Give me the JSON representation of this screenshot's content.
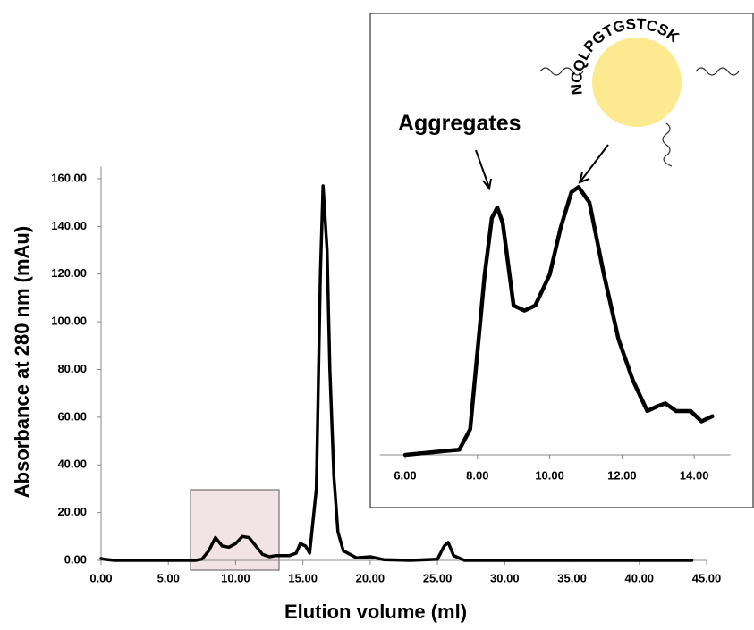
{
  "chart_data": [
    {
      "type": "line",
      "xlabel": "Elution volume (ml)",
      "ylabel": "Absorbance at 280 nm (mAu)",
      "x": [
        0,
        0.3,
        1,
        7,
        7.5,
        8,
        8.5,
        9,
        9.5,
        10,
        10.5,
        11,
        11.5,
        12,
        12.5,
        13,
        14,
        14.5,
        14.8,
        15.2,
        15.5,
        16,
        16.3,
        16.5,
        16.8,
        17,
        17.3,
        17.6,
        18,
        19,
        20,
        21,
        23,
        25,
        25.5,
        25.8,
        26.2,
        27,
        43.9
      ],
      "values": [
        0.8,
        0.4,
        0,
        0,
        0.5,
        4,
        9.5,
        6,
        5.5,
        7,
        10,
        9.5,
        6,
        2.5,
        1.5,
        2,
        2,
        3,
        7,
        6,
        3,
        30,
        120,
        157,
        130,
        80,
        35,
        12,
        4,
        1,
        1.5,
        0.3,
        0,
        0.5,
        6,
        7.5,
        2,
        0,
        0
      ],
      "color": "#000000",
      "xlim": [
        0,
        45
      ],
      "ylim": [
        0,
        165
      ],
      "xticks": [
        {
          "value": 0,
          "label": "0.00"
        },
        {
          "value": 5,
          "label": "5.00"
        },
        {
          "value": 10,
          "label": "10.00"
        },
        {
          "value": 15,
          "label": "15.00"
        },
        {
          "value": 20,
          "label": "20.00"
        },
        {
          "value": 25,
          "label": "25.00"
        },
        {
          "value": 30,
          "label": "30.00"
        },
        {
          "value": 35,
          "label": "35.00"
        },
        {
          "value": 40,
          "label": "40.00"
        },
        {
          "value": 45,
          "label": "45.00"
        }
      ],
      "yticks": [
        {
          "value": 0,
          "label": "0.00"
        },
        {
          "value": 20,
          "label": "20.00"
        },
        {
          "value": 40,
          "label": "40.00"
        },
        {
          "value": 60,
          "label": "60.00"
        },
        {
          "value": 80,
          "label": "80.00"
        },
        {
          "value": 100,
          "label": "100.00"
        },
        {
          "value": 120,
          "label": "120.00"
        },
        {
          "value": 140,
          "label": "140.00"
        },
        {
          "value": 160,
          "label": "160.00"
        }
      ]
    },
    {
      "type": "line",
      "annotation": "Aggregates",
      "icon_label": "NCQLPGTGSTCSK",
      "x": [
        6,
        7.5,
        7.8,
        8,
        8.2,
        8.4,
        8.55,
        8.7,
        9,
        9.3,
        9.6,
        10,
        10.3,
        10.6,
        10.8,
        11.1,
        11.5,
        11.9,
        12.3,
        12.7,
        13,
        13.2,
        13.5,
        13.9,
        14.2,
        14.5
      ],
      "values": [
        0,
        0.2,
        1,
        4,
        7,
        9.2,
        9.6,
        9,
        5.8,
        5.6,
        5.8,
        7,
        8.8,
        10.2,
        10.4,
        9.8,
        7,
        4.5,
        2.9,
        1.7,
        1.9,
        2,
        1.7,
        1.7,
        1.3,
        1.5
      ],
      "color": "#000000",
      "xlim": [
        5.3,
        15
      ],
      "ylim": [
        0,
        11
      ],
      "xticks": [
        {
          "value": 6,
          "label": "6.00"
        },
        {
          "value": 8,
          "label": "8.00"
        },
        {
          "value": 10,
          "label": "10.00"
        },
        {
          "value": 12,
          "label": "12.00"
        },
        {
          "value": 14,
          "label": "14.00"
        }
      ]
    }
  ]
}
